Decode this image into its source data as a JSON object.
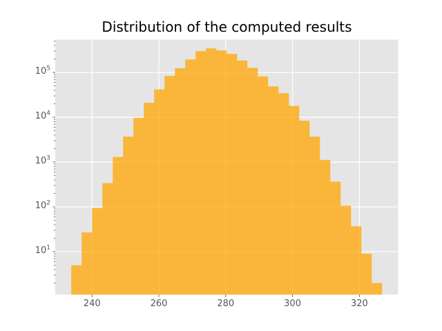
{
  "chart": {
    "title": "Distribution of the computed results"
  },
  "chart_data": {
    "type": "bar",
    "subtype": "histogram",
    "title": "Distribution of the computed results",
    "xlabel": "",
    "ylabel": "",
    "yscale": "log",
    "grid": true,
    "legend": false,
    "xlim": [
      229.0,
      331.6
    ],
    "ylim": [
      1.1,
      540000
    ],
    "bin_edges": [
      233.8,
      236.9,
      240.0,
      243.1,
      246.2,
      249.3,
      252.4,
      255.5,
      258.6,
      261.7,
      264.8,
      267.9,
      271.0,
      274.1,
      277.2,
      280.3,
      283.4,
      286.5,
      289.6,
      292.7,
      295.8,
      298.9,
      302.0,
      305.1,
      308.2,
      311.3,
      314.4,
      317.5,
      320.6,
      323.7,
      326.8
    ],
    "counts": [
      5,
      27,
      94,
      340,
      1300,
      3700,
      9700,
      21000,
      42000,
      84000,
      124000,
      195000,
      300000,
      345000,
      310000,
      260000,
      185000,
      127000,
      82000,
      49000,
      34500,
      18000,
      8400,
      3700,
      1120,
      366,
      106,
      37,
      9,
      2
    ],
    "x_ticks": [
      240,
      260,
      280,
      300,
      320
    ],
    "y_tick_exponents": [
      1,
      2,
      3,
      4,
      5
    ],
    "colors": {
      "bar": "rgba(255,165,0,0.75)",
      "plot_bg": "#e5e5e5",
      "grid": "#ffffff",
      "tick": "#555555",
      "tick_label": "#555555",
      "title": "#000000",
      "figure_bg": "#ffffff"
    }
  }
}
